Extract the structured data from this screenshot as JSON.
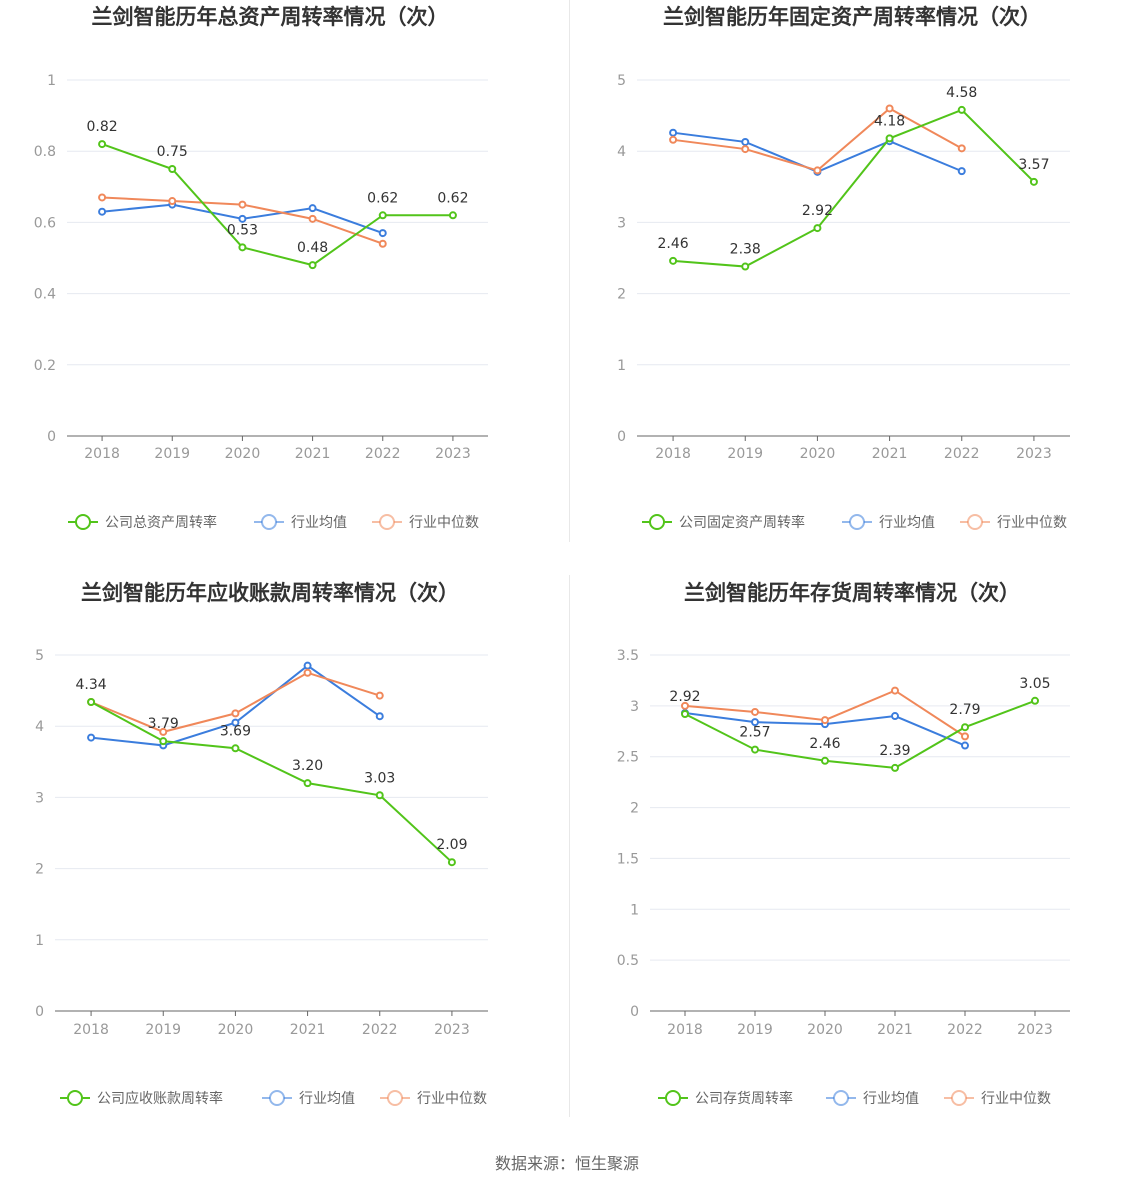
{
  "colors": {
    "company": "#52c41a",
    "avg": "#3b7ddd",
    "median": "#f0885a",
    "grid": "#e6e9f0",
    "axis": "#666666"
  },
  "source_label": "数据来源：恒生聚源",
  "chart_data": [
    {
      "type": "line",
      "title": "兰剑智能历年总资产周转率情况（次）",
      "categories": [
        "2018",
        "2019",
        "2020",
        "2021",
        "2022",
        "2023"
      ],
      "ylim": [
        0,
        1
      ],
      "yticks": [
        "0",
        "0.2",
        "0.4",
        "0.6",
        "0.8",
        "1"
      ],
      "ytick_values": [
        0,
        0.2,
        0.4,
        0.6,
        0.8,
        1
      ],
      "legend_position": "bottom",
      "series": [
        {
          "name": "公司总资产周转率",
          "key": "company",
          "values": [
            0.82,
            0.75,
            0.53,
            0.48,
            0.62,
            0.62
          ],
          "labels": [
            "0.82",
            "0.75",
            "0.53",
            "0.48",
            "0.62",
            "0.62"
          ]
        },
        {
          "name": "行业均值",
          "key": "avg",
          "values": [
            0.63,
            0.65,
            0.61,
            0.64,
            0.57,
            null
          ]
        },
        {
          "name": "行业中位数",
          "key": "median",
          "values": [
            0.67,
            0.66,
            0.65,
            0.61,
            0.54,
            null
          ]
        }
      ]
    },
    {
      "type": "line",
      "title": "兰剑智能历年固定资产周转率情况（次）",
      "categories": [
        "2018",
        "2019",
        "2020",
        "2021",
        "2022",
        "2023"
      ],
      "ylim": [
        0,
        5
      ],
      "yticks": [
        "0",
        "1",
        "2",
        "3",
        "4",
        "5"
      ],
      "ytick_values": [
        0,
        1,
        2,
        3,
        4,
        5
      ],
      "legend_position": "bottom",
      "series": [
        {
          "name": "公司固定资产周转率",
          "key": "company",
          "values": [
            2.46,
            2.38,
            2.92,
            4.18,
            4.58,
            3.57
          ],
          "labels": [
            "2.46",
            "2.38",
            "2.92",
            "4.18",
            "4.58",
            "3.57"
          ]
        },
        {
          "name": "行业均值",
          "key": "avg",
          "values": [
            4.26,
            4.13,
            3.71,
            4.14,
            3.72,
            null
          ]
        },
        {
          "name": "行业中位数",
          "key": "median",
          "values": [
            4.16,
            4.03,
            3.73,
            4.6,
            4.04,
            null
          ]
        }
      ]
    },
    {
      "type": "line",
      "title": "兰剑智能历年应收账款周转率情况（次）",
      "categories": [
        "2018",
        "2019",
        "2020",
        "2021",
        "2022",
        "2023"
      ],
      "ylim": [
        0,
        5
      ],
      "yticks": [
        "0",
        "1",
        "2",
        "3",
        "4",
        "5"
      ],
      "ytick_values": [
        0,
        1,
        2,
        3,
        4,
        5
      ],
      "legend_position": "bottom",
      "series": [
        {
          "name": "公司应收账款周转率",
          "key": "company",
          "values": [
            4.34,
            3.79,
            3.69,
            3.2,
            3.03,
            2.09
          ],
          "labels": [
            "4.34",
            "3.79",
            "3.69",
            "3.20",
            "3.03",
            "2.09"
          ]
        },
        {
          "name": "行业均值",
          "key": "avg",
          "values": [
            3.84,
            3.73,
            4.05,
            4.85,
            4.14,
            null
          ]
        },
        {
          "name": "行业中位数",
          "key": "median",
          "values": [
            4.34,
            3.92,
            4.18,
            4.75,
            4.43,
            null
          ]
        }
      ]
    },
    {
      "type": "line",
      "title": "兰剑智能历年存货周转率情况（次）",
      "categories": [
        "2018",
        "2019",
        "2020",
        "2021",
        "2022",
        "2023"
      ],
      "ylim": [
        0,
        3.5
      ],
      "yticks": [
        "0",
        "0.5",
        "1",
        "1.5",
        "2",
        "2.5",
        "3",
        "3.5"
      ],
      "ytick_values": [
        0,
        0.5,
        1,
        1.5,
        2,
        2.5,
        3,
        3.5
      ],
      "legend_position": "bottom",
      "series": [
        {
          "name": "公司存货周转率",
          "key": "company",
          "values": [
            2.92,
            2.57,
            2.46,
            2.39,
            2.79,
            3.05
          ],
          "labels": [
            "2.92",
            "2.57",
            "2.46",
            "2.39",
            "2.79",
            "3.05"
          ]
        },
        {
          "name": "行业均值",
          "key": "avg",
          "values": [
            2.93,
            2.84,
            2.82,
            2.9,
            2.61,
            null
          ]
        },
        {
          "name": "行业中位数",
          "key": "median",
          "values": [
            3.0,
            2.94,
            2.86,
            3.15,
            2.7,
            null
          ]
        }
      ]
    }
  ]
}
